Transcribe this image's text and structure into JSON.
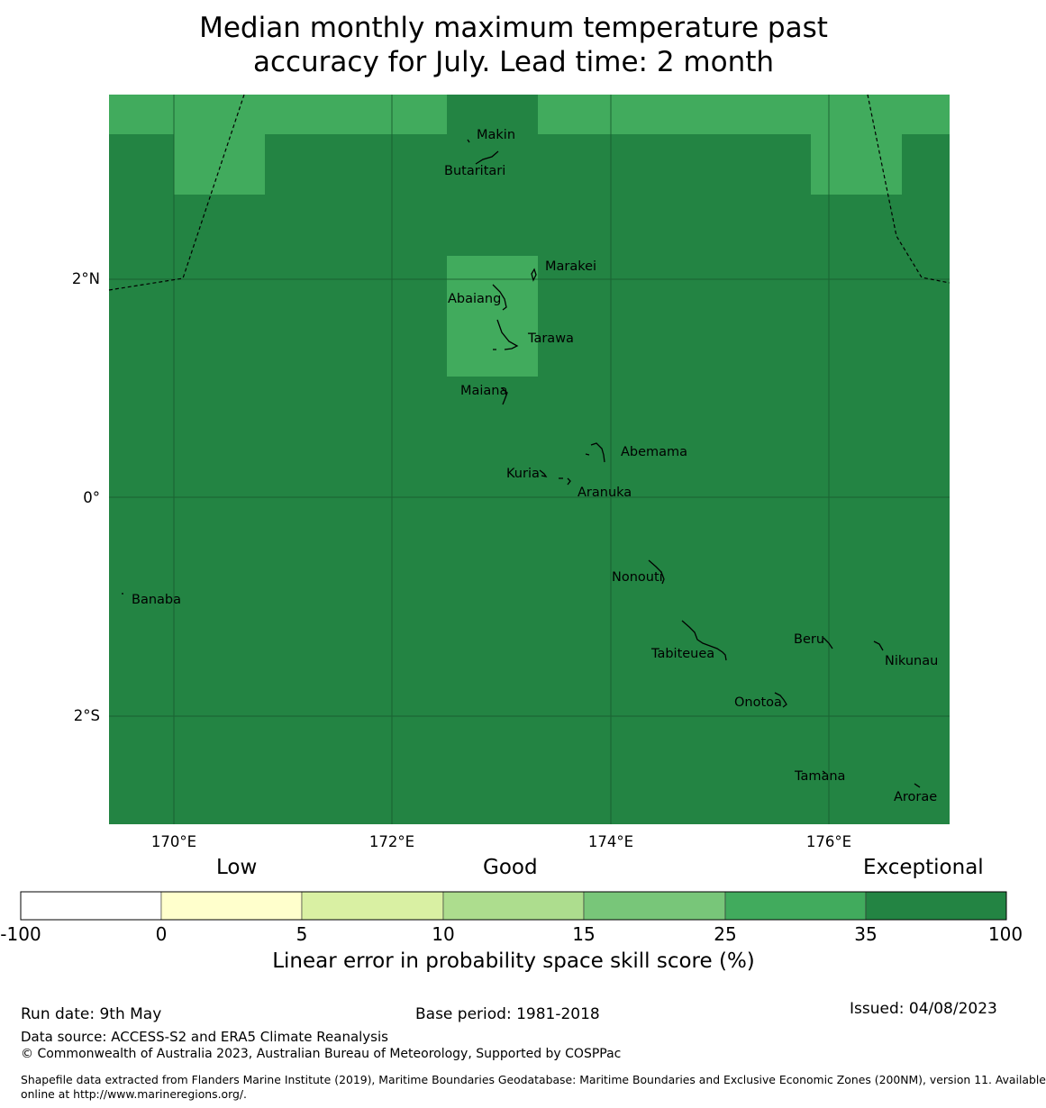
{
  "title_line1": "Median monthly maximum temperature past",
  "title_line2": "accuracy for July. Lead time: 2 month",
  "map": {
    "lat_ticks": [
      "2°N",
      "0°",
      "2°S"
    ],
    "lon_ticks": [
      "170°E",
      "172°E",
      "174°E",
      "176°E"
    ],
    "places": [
      "Makin",
      "Butaritari",
      "Marakei",
      "Abaiang",
      "Tarawa",
      "Maiana",
      "Abemama",
      "Kuria",
      "Aranuka",
      "Nonouti",
      "Banaba",
      "Tabiteuea",
      "Beru",
      "Nikunau",
      "Onotoa",
      "Tamana",
      "Arorae"
    ]
  },
  "colorbar": {
    "categories": [
      "Low",
      "Good",
      "Exceptional"
    ],
    "tick_labels": [
      "-100",
      "0",
      "5",
      "10",
      "15",
      "25",
      "35",
      "100"
    ],
    "colors": [
      "#ffffff",
      "#ffffcc",
      "#d9f0a3",
      "#addd8e",
      "#78c679",
      "#41ab5d",
      "#238443"
    ],
    "label": "Linear error in probability space skill score (%)"
  },
  "colors": {
    "exceptional": "#238443",
    "very_good": "#41ab5d"
  },
  "footer": {
    "run_date": "Run date: 9th May",
    "base_period": "Base period: 1981-2018",
    "issued": "Issued: 04/08/2023",
    "data_source": "Data source: ACCESS-S2 and ERA5 Climate Reanalysis",
    "copyright": "© Commonwealth of Australia 2023, Australian Bureau of Meteorology, Supported by COSPPac",
    "shapefile_line1": "Shapefile data extracted from Flanders Marine Institute (2019), Maritime Boundaries Geodatabase: Maritime Boundaries and Exclusive Economic Zones (200NM), version 11. Available",
    "shapefile_line2": "online at http://www.marineregions.org/."
  }
}
